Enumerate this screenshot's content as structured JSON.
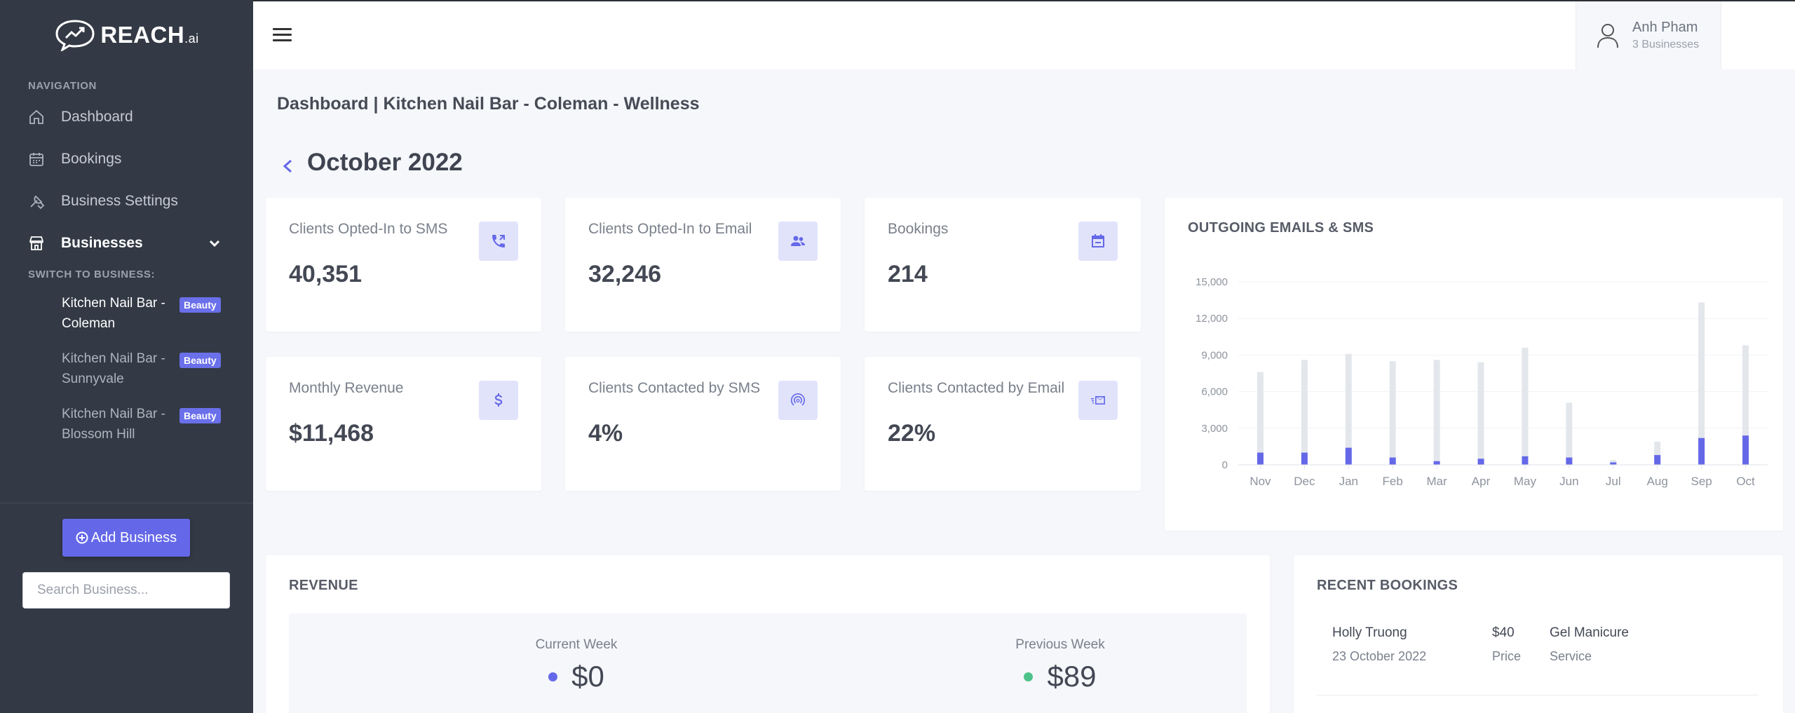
{
  "brand": {
    "name": "REACH",
    "suffix": ".ai"
  },
  "sidebar": {
    "nav_heading": "NAVIGATION",
    "items": [
      {
        "label": "Dashboard",
        "icon": "home-icon"
      },
      {
        "label": "Bookings",
        "icon": "calendar-icon"
      },
      {
        "label": "Business Settings",
        "icon": "tools-icon"
      },
      {
        "label": "Businesses",
        "icon": "store-icon"
      }
    ],
    "switch_heading": "SWITCH TO BUSINESS:",
    "businesses": [
      {
        "name": "Kitchen Nail Bar - Coleman",
        "badge": "Beauty"
      },
      {
        "name": "Kitchen Nail Bar - Sunnyvale",
        "badge": "Beauty"
      },
      {
        "name": "Kitchen Nail Bar - Blossom Hill",
        "badge": "Beauty"
      }
    ],
    "add_business_label": "Add Business",
    "search_placeholder": "Search Business..."
  },
  "user": {
    "name": "Anh Pham",
    "subtitle": "3 Businesses"
  },
  "page": {
    "title": "Dashboard | Kitchen Nail Bar - Coleman - Wellness",
    "month": "October 2022"
  },
  "stats": [
    {
      "label": "Clients Opted-In to SMS",
      "value": "40,351",
      "icon": "phone-icon"
    },
    {
      "label": "Clients Opted-In to Email",
      "value": "32,246",
      "icon": "users-icon"
    },
    {
      "label": "Bookings",
      "value": "214",
      "icon": "calendar-check-icon"
    },
    {
      "label": "Monthly Revenue",
      "value": "$11,468",
      "icon": "dollar-icon"
    },
    {
      "label": "Clients Contacted by SMS",
      "value": "4%",
      "icon": "broadcast-icon"
    },
    {
      "label": "Clients Contacted by Email",
      "value": "22%",
      "icon": "mail-fast-icon"
    }
  ],
  "chart_title": "OUTGOING EMAILS & SMS",
  "chart_data": {
    "type": "bar",
    "title": "OUTGOING EMAILS & SMS",
    "categories": [
      "Nov",
      "Dec",
      "Jan",
      "Feb",
      "Mar",
      "Apr",
      "May",
      "Jun",
      "Jul",
      "Aug",
      "Sep",
      "Oct"
    ],
    "series": [
      {
        "values": [
          7600,
          8600,
          9100,
          8500,
          8600,
          8400,
          9600,
          5100,
          400,
          1900,
          13300,
          9800
        ],
        "color": "#e3e7ec"
      },
      {
        "values": [
          1000,
          1000,
          1400,
          600,
          300,
          500,
          700,
          600,
          200,
          800,
          2200,
          2400
        ],
        "color": "#6468e8"
      }
    ],
    "yticks": [
      0,
      3000,
      6000,
      9000,
      12000,
      15000
    ],
    "ytick_labels": [
      "0",
      "3,000",
      "6,000",
      "9,000",
      "12,000",
      "15,000"
    ],
    "ylim": [
      0,
      15000
    ],
    "grid": true
  },
  "revenue": {
    "title": "REVENUE",
    "current": {
      "label": "Current Week",
      "value": "$0",
      "color": "#6468e8"
    },
    "previous": {
      "label": "Previous Week",
      "value": "$89",
      "color": "#4cc38a"
    }
  },
  "recent_bookings": {
    "title": "RECENT BOOKINGS",
    "rows": [
      {
        "client": "Holly Truong",
        "date": "23 October 2022",
        "price": "$40",
        "price_label": "Price",
        "service": "Gel Manicure",
        "service_label": "Service"
      }
    ]
  }
}
